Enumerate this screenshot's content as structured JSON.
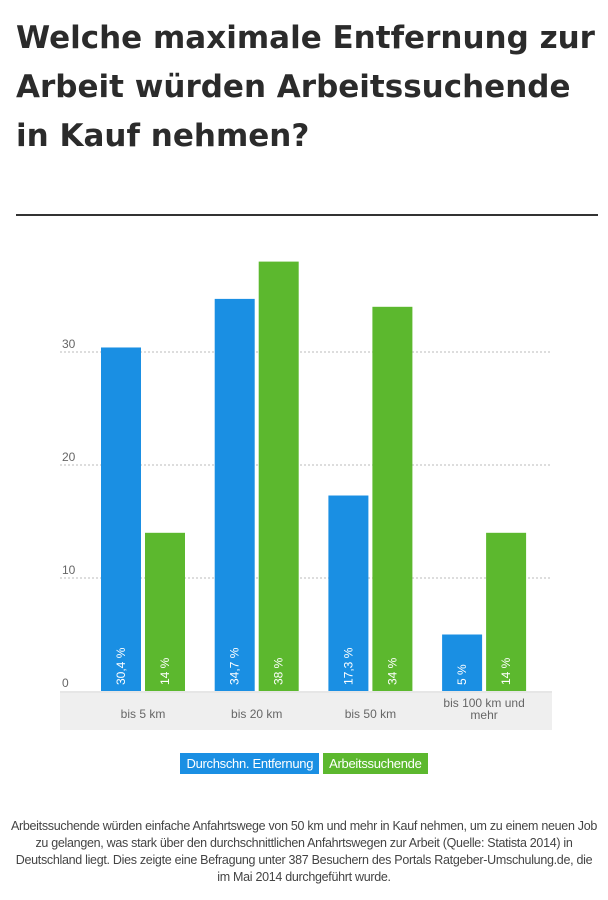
{
  "title": "Welche maximale Entfernung zur Arbeit würden Arbeitssuchende in Kauf nehmen?",
  "caption": "Arbeitssuchende würden einfache Anfahrtswege von 50 km und mehr in Kauf  nehmen, um zu einem neuen Job zu gelangen, was stark über den durchschnittlichen Anfahrtswegen zur Arbeit (Quelle: Statista 2014) in Deutschland  liegt. Dies  zeigte eine Befragung unter  387 Besuchern des Portals Ratgeber-Umschulung.de, die im Mai 2014 durchgeführt wurde.",
  "chart_data": {
    "type": "bar",
    "categories": [
      "bis 5 km",
      "bis 20 km",
      "bis 50 km",
      "bis 100 km und mehr"
    ],
    "series": [
      {
        "name": "Durchschn. Entfernung",
        "color": "#1a8fe3",
        "values": [
          30.4,
          34.7,
          17.3,
          5
        ],
        "labels": [
          "30,4 %",
          "34,7 %",
          "17,3 %",
          "5 %"
        ]
      },
      {
        "name": "Arbeitssuchende",
        "color": "#5cb82e",
        "values": [
          14,
          38,
          34,
          14
        ],
        "labels": [
          "14 %",
          "38 %",
          "34 %",
          "14 %"
        ]
      }
    ],
    "yticks": [
      0,
      10,
      20,
      30
    ],
    "ylim": [
      0,
      40
    ],
    "grid": true,
    "legend": "bottom-center"
  }
}
